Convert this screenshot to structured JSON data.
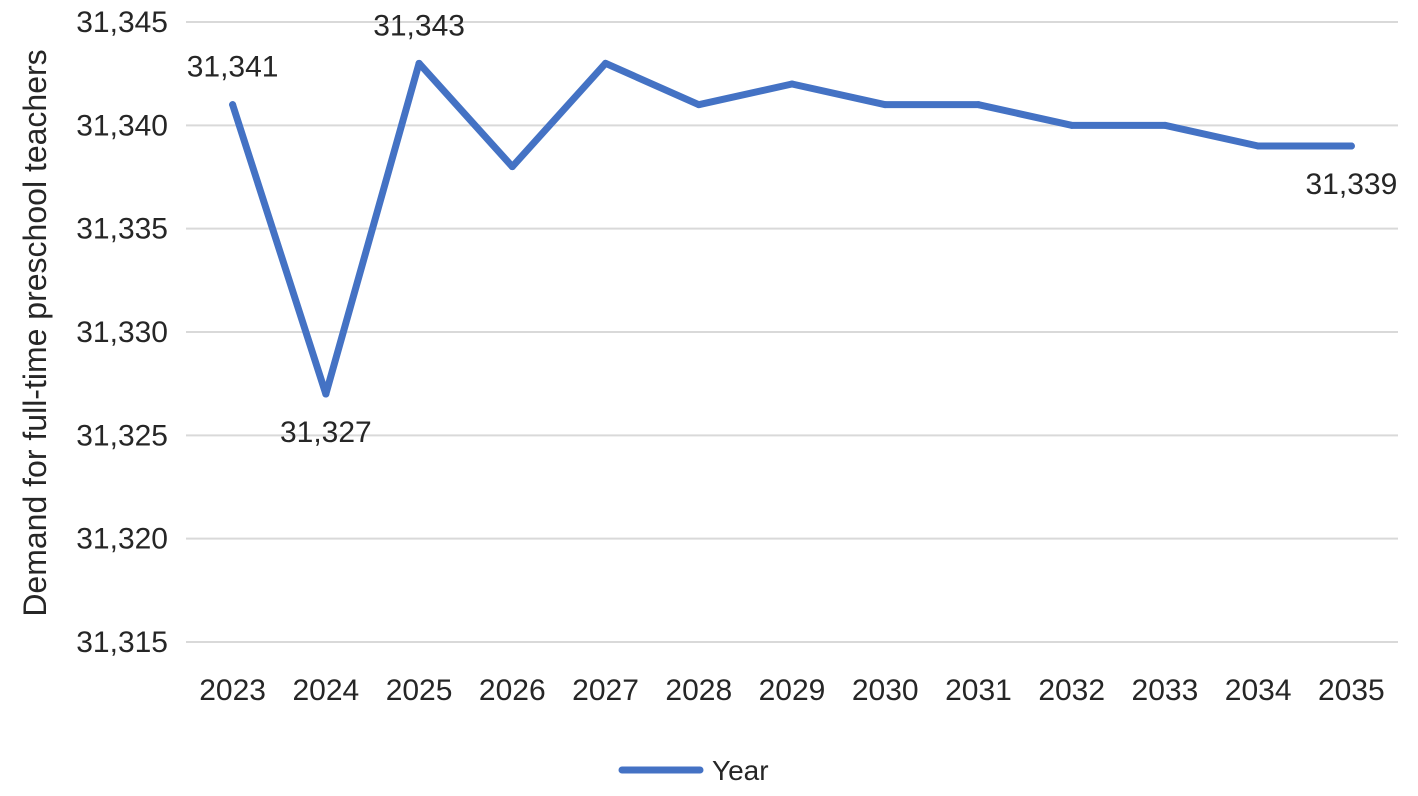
{
  "chart_data": {
    "type": "line",
    "title": "",
    "xlabel": "",
    "ylabel": "Demand for full-time preschool teachers",
    "categories": [
      "2023",
      "2024",
      "2025",
      "2026",
      "2027",
      "2028",
      "2029",
      "2030",
      "2031",
      "2032",
      "2033",
      "2034",
      "2035"
    ],
    "series": [
      {
        "name": "Year",
        "color": "#4472C4",
        "values": [
          31341,
          31327,
          31343,
          31338,
          31343,
          31341,
          31342,
          31341,
          31341,
          31340,
          31340,
          31339,
          31339
        ]
      }
    ],
    "ylim": [
      31315,
      31345
    ],
    "yticks": [
      31315,
      31320,
      31325,
      31330,
      31335,
      31340,
      31345
    ],
    "ytick_labels": [
      "31,315",
      "31,320",
      "31,325",
      "31,330",
      "31,335",
      "31,340",
      "31,345"
    ],
    "data_labels": [
      {
        "category": "2023",
        "text": "31,341",
        "placement": "above"
      },
      {
        "category": "2024",
        "text": "31,327",
        "placement": "below"
      },
      {
        "category": "2025",
        "text": "31,343",
        "placement": "above"
      },
      {
        "category": "2035",
        "text": "31,339",
        "placement": "below"
      }
    ],
    "grid": true,
    "legend_position": "bottom"
  }
}
